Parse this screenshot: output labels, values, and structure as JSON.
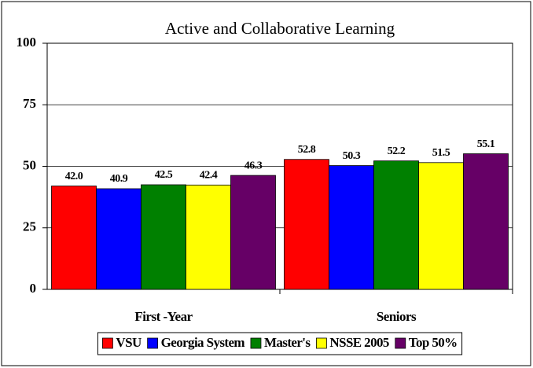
{
  "chart_data": {
    "type": "bar",
    "title": "Active and Collaborative Learning",
    "categories": [
      "First -Year",
      "Seniors"
    ],
    "series": [
      {
        "name": "VSU",
        "color": "#ff0000",
        "values": [
          42.0,
          52.8
        ],
        "value_labels": [
          "42.0",
          "52.8"
        ]
      },
      {
        "name": "Georgia System",
        "color": "#0000ff",
        "values": [
          40.9,
          50.3
        ],
        "value_labels": [
          "40.9",
          "50.3"
        ]
      },
      {
        "name": "Master's",
        "color": "#008000",
        "values": [
          42.5,
          52.2
        ],
        "value_labels": [
          "42.5",
          "52.2"
        ]
      },
      {
        "name": "NSSE 2005",
        "color": "#ffff00",
        "values": [
          42.4,
          51.5
        ],
        "value_labels": [
          "42.4",
          "51.5"
        ]
      },
      {
        "name": "Top 50%",
        "color": "#660066",
        "values": [
          46.3,
          55.1
        ],
        "value_labels": [
          "46.3",
          "55.1"
        ]
      }
    ],
    "ylim": [
      0,
      100
    ],
    "yticks": [
      0,
      25,
      50,
      75,
      100
    ],
    "grid": true,
    "legend": "bottom"
  }
}
